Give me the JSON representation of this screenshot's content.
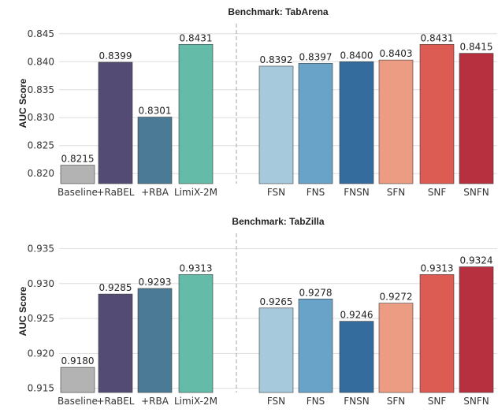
{
  "chart_data": [
    {
      "type": "bar",
      "title": "Benchmark: TabArena",
      "xlabel": "",
      "ylabel": "AUC Score",
      "ylim": [
        0.8182,
        0.8468
      ],
      "yticks": [
        "0.820",
        "0.825",
        "0.830",
        "0.835",
        "0.840",
        "0.845"
      ],
      "grid": true,
      "categories": [
        "Baseline",
        "+RaBEL",
        "+RBA",
        "LimiX-2M",
        "FSN",
        "FNS",
        "FNSN",
        "SFN",
        "SNF",
        "SNFN"
      ],
      "values": [
        0.8215,
        0.8399,
        0.8301,
        0.8431,
        0.8392,
        0.8397,
        0.84,
        0.8403,
        0.8431,
        0.8415
      ],
      "value_labels": [
        "0.8215",
        "0.8399",
        "0.8301",
        "0.8431",
        "0.8392",
        "0.8397",
        "0.8400",
        "0.8403",
        "0.8431",
        "0.8415"
      ],
      "colors": [
        "#b3b3b3",
        "#534b73",
        "#4a7a96",
        "#64bca8",
        "#a7c9dc",
        "#6aa3c8",
        "#356c9e",
        "#ec9c82",
        "#dc5b52",
        "#b63040"
      ]
    },
    {
      "type": "bar",
      "title": "Benchmark: TabZilla",
      "xlabel": "",
      "ylabel": "AUC Score",
      "ylim": [
        0.9144,
        0.9372
      ],
      "yticks": [
        "0.915",
        "0.920",
        "0.925",
        "0.930",
        "0.935"
      ],
      "grid": true,
      "categories": [
        "Baseline",
        "+RaBEL",
        "+RBA",
        "LimiX-2M",
        "FSN",
        "FNS",
        "FNSN",
        "SFN",
        "SNF",
        "SNFN"
      ],
      "values": [
        0.918,
        0.9285,
        0.9293,
        0.9313,
        0.9265,
        0.9278,
        0.9246,
        0.9272,
        0.9313,
        0.9324
      ],
      "value_labels": [
        "0.9180",
        "0.9285",
        "0.9293",
        "0.9313",
        "0.9265",
        "0.9278",
        "0.9246",
        "0.9272",
        "0.9313",
        "0.9324"
      ],
      "colors": [
        "#b3b3b3",
        "#534b73",
        "#4a7a96",
        "#64bca8",
        "#a7c9dc",
        "#6aa3c8",
        "#356c9e",
        "#ec9c82",
        "#dc5b52",
        "#b63040"
      ]
    }
  ]
}
